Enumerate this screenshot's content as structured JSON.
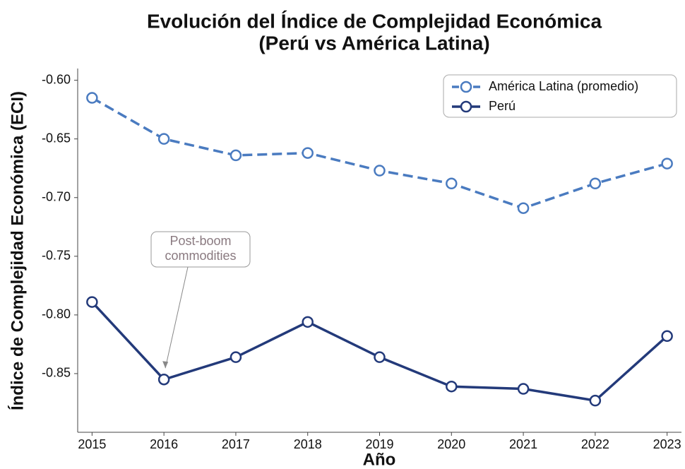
{
  "chart_data": {
    "type": "line",
    "title": [
      "Evolución del Índice de Complejidad Económica",
      "(Perú vs América Latina)"
    ],
    "x_label": "Año",
    "y_label": "Índice de Complejidad Económica (ECI)",
    "x": [
      2015,
      2016,
      2017,
      2018,
      2019,
      2020,
      2021,
      2022,
      2023
    ],
    "series": [
      {
        "name": "América Latina (promedio)",
        "color": "#4a7bc0",
        "dashed": true,
        "values": [
          -0.615,
          -0.65,
          -0.664,
          -0.662,
          -0.677,
          -0.688,
          -0.709,
          -0.688,
          -0.671
        ]
      },
      {
        "name": "Perú",
        "color": "#233a7a",
        "dashed": false,
        "values": [
          -0.789,
          -0.855,
          -0.836,
          -0.806,
          -0.836,
          -0.861,
          -0.863,
          -0.873,
          -0.818
        ]
      }
    ],
    "xlim": [
      2014.8,
      2023.2
    ],
    "xticks": [
      2015,
      2016,
      2017,
      2018,
      2019,
      2020,
      2021,
      2022,
      2023
    ],
    "ylim": [
      -0.9,
      -0.59
    ],
    "yticks": [
      {
        "value": -0.6,
        "label": "-0.60"
      },
      {
        "value": -0.65,
        "label": "-0.65"
      },
      {
        "value": -0.7,
        "label": "-0.70"
      },
      {
        "value": -0.75,
        "label": "-0.75"
      },
      {
        "value": -0.8,
        "label": "-0.80"
      },
      {
        "value": -0.85,
        "label": "-0.85"
      }
    ],
    "legend": "upper right",
    "annotation": {
      "lines": [
        "Post-boom",
        "commodities"
      ],
      "series": 1,
      "index": 1
    }
  }
}
